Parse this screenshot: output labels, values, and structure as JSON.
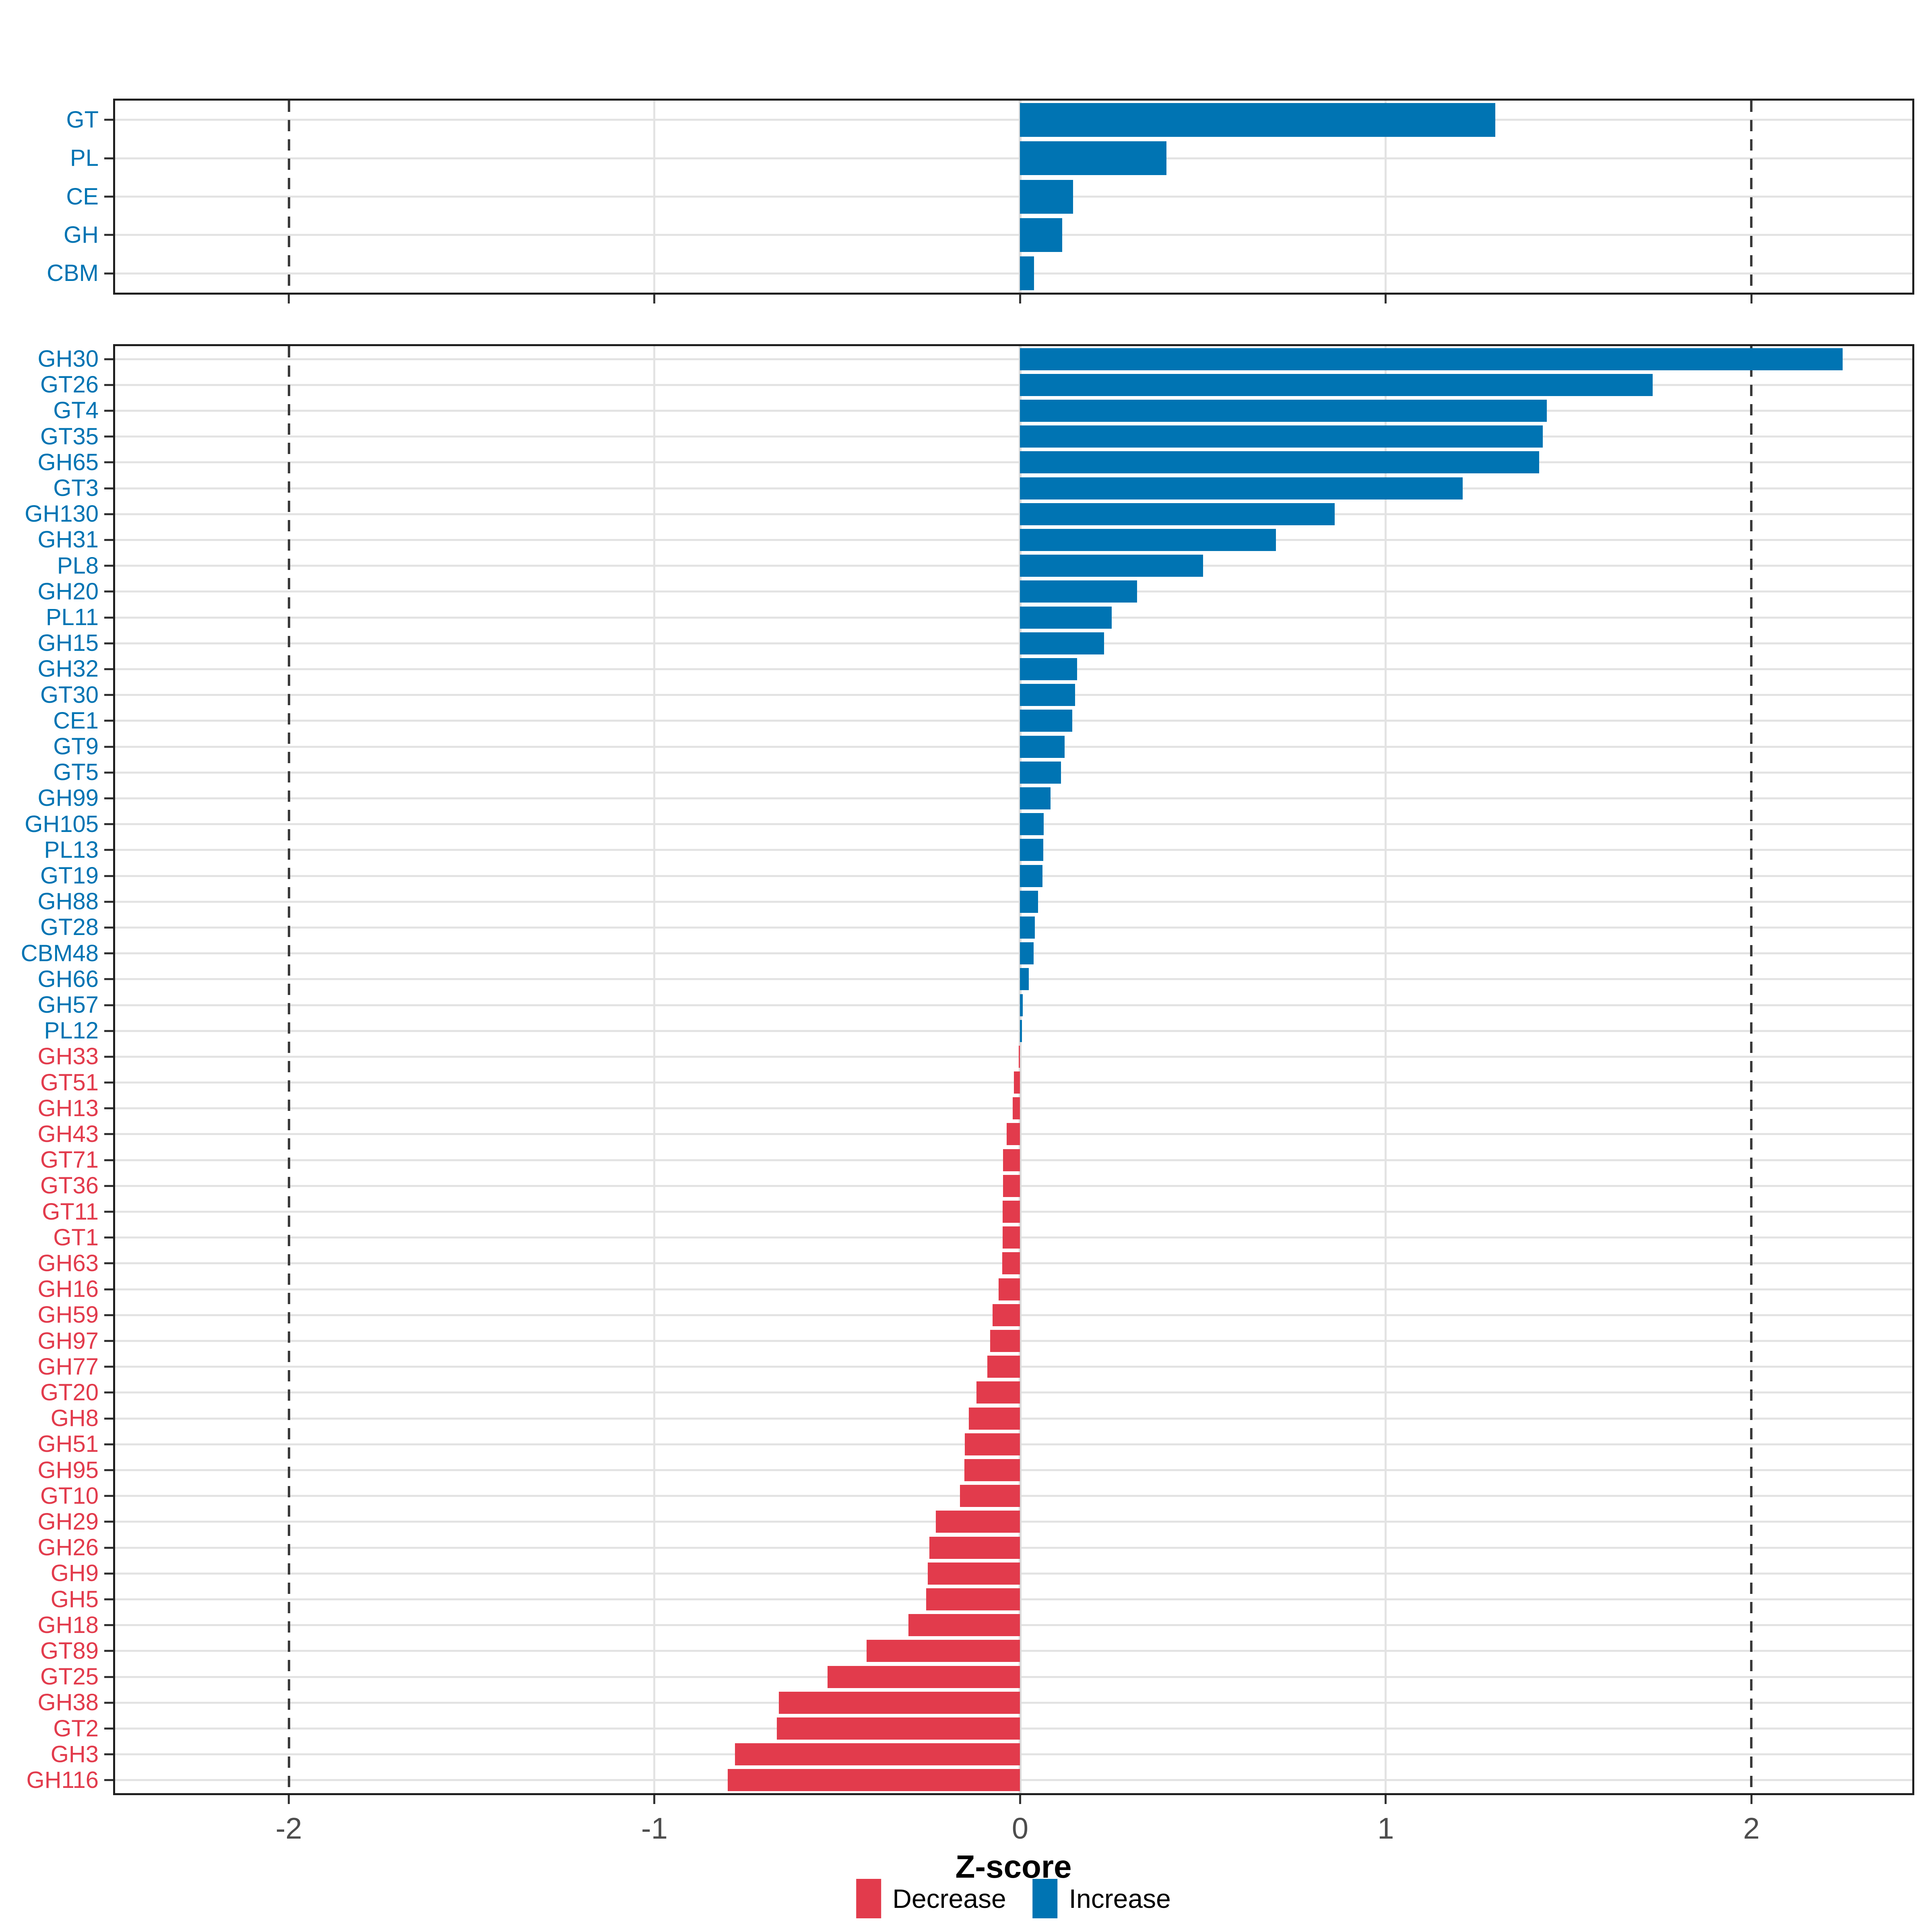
{
  "figure": {
    "xlabel": "Z-score",
    "x_ticks": [
      "-2",
      "-1",
      "0",
      "1",
      "2"
    ],
    "colors": {
      "increase_blue": "#0074B3",
      "decrease_red": "#E23B4C",
      "grid": "#E3E3E3",
      "axis_text": "#4D4D4D",
      "dashed_line": "#3A3A3A",
      "panel_border": "#1F1F1F"
    }
  },
  "legend": {
    "items": [
      {
        "label": "Decrease",
        "color_key": "decrease_red"
      },
      {
        "label": "Increase",
        "color_key": "increase_blue"
      }
    ]
  },
  "chart_data": [
    {
      "type": "bar",
      "orientation": "horizontal",
      "panel": "top",
      "title": "",
      "xlabel": "Z-score",
      "xlim": [
        -2.475,
        2.44
      ],
      "x_ticks": [
        -2,
        -1,
        0,
        1,
        2
      ],
      "dashed_reference_x": [
        -2,
        2
      ],
      "grid": true,
      "legend_position": "bottom",
      "series_rule": "value >= 0 is Increase (blue), value < 0 is Decrease (red)",
      "categories": [
        "GT",
        "PL",
        "CE",
        "GH",
        "CBM"
      ],
      "values": [
        1.3,
        0.4,
        0.145,
        0.115,
        0.038
      ]
    },
    {
      "type": "bar",
      "orientation": "horizontal",
      "panel": "bottom",
      "title": "",
      "xlabel": "Z-score",
      "xlim": [
        -2.475,
        2.44
      ],
      "x_ticks": [
        -2,
        -1,
        0,
        1,
        2
      ],
      "dashed_reference_x": [
        -2,
        2
      ],
      "grid": true,
      "legend_position": "bottom",
      "series_rule": "value >= 0 is Increase (blue), value < 0 is Decrease (red)",
      "categories": [
        "GH30",
        "GT26",
        "GT4",
        "GT35",
        "GH65",
        "GT3",
        "GH130",
        "GH31",
        "PL8",
        "GH20",
        "PL11",
        "GH15",
        "GH32",
        "GT30",
        "CE1",
        "GT9",
        "GT5",
        "GH99",
        "GH105",
        "PL13",
        "GT19",
        "GH88",
        "GT28",
        "CBM48",
        "GH66",
        "GH57",
        "PL12",
        "GH33",
        "GT51",
        "GH13",
        "GH43",
        "GT71",
        "GT36",
        "GT11",
        "GT1",
        "GH63",
        "GH16",
        "GH59",
        "GH97",
        "GH77",
        "GT20",
        "GH8",
        "GH51",
        "GH95",
        "GT10",
        "GH29",
        "GH26",
        "GH9",
        "GH5",
        "GH18",
        "GT89",
        "GT25",
        "GH38",
        "GT2",
        "GH3",
        "GH116"
      ],
      "values": [
        2.25,
        1.73,
        1.44,
        1.43,
        1.42,
        1.21,
        0.86,
        0.7,
        0.5,
        0.32,
        0.25,
        0.23,
        0.156,
        0.15,
        0.143,
        0.122,
        0.112,
        0.083,
        0.064,
        0.063,
        0.061,
        0.049,
        0.04,
        0.037,
        0.024,
        0.007,
        0.005,
        -0.004,
        -0.017,
        -0.02,
        -0.037,
        -0.047,
        -0.047,
        -0.048,
        -0.048,
        -0.049,
        -0.059,
        -0.075,
        -0.082,
        -0.09,
        -0.119,
        -0.14,
        -0.151,
        -0.152,
        -0.165,
        -0.23,
        -0.248,
        -0.252,
        -0.257,
        -0.305,
        -0.42,
        -0.527,
        -0.66,
        -0.665,
        -0.78,
        -0.8
      ]
    }
  ]
}
